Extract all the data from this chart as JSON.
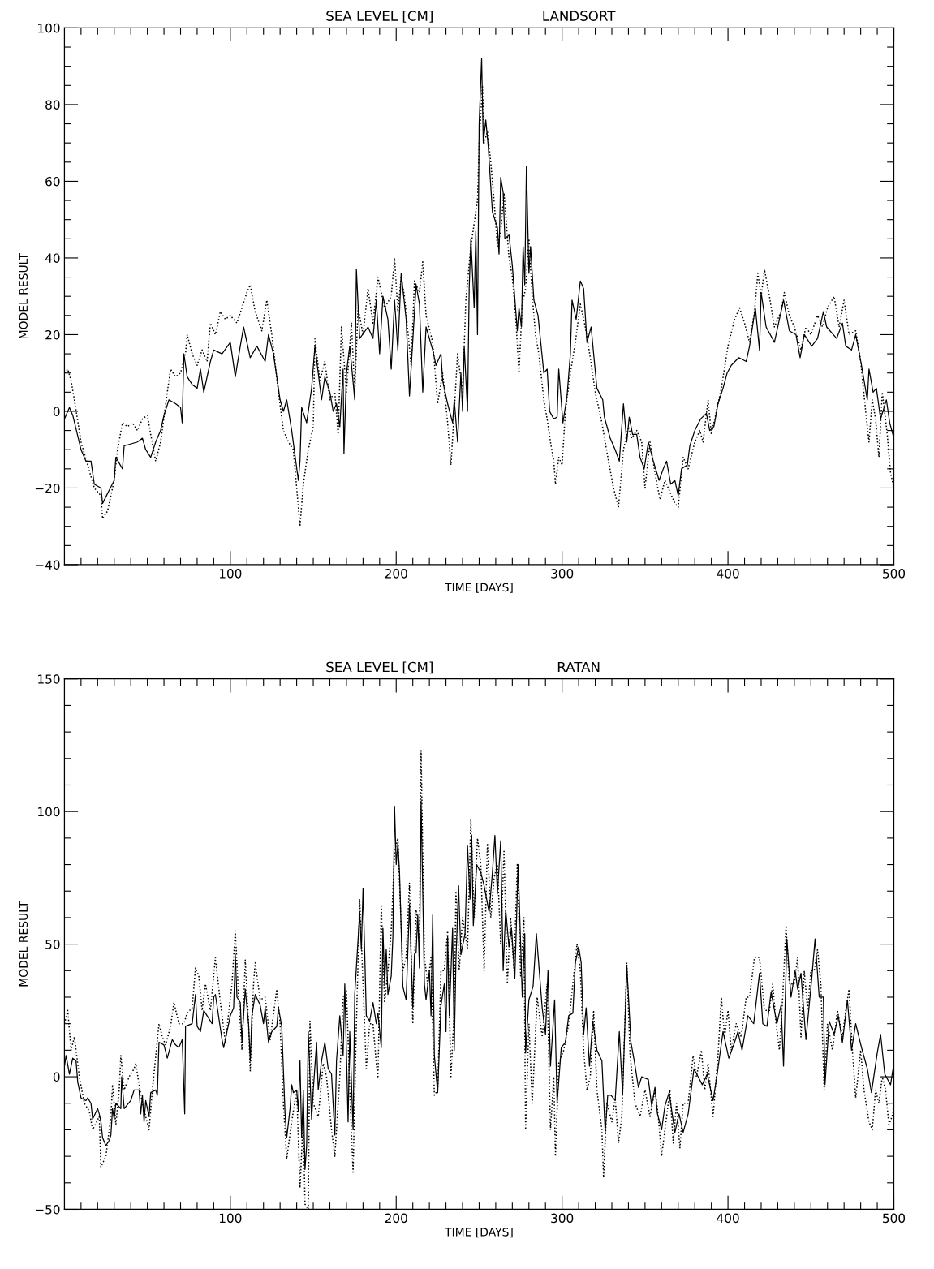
{
  "chart_data": [
    {
      "type": "line",
      "title": "SEA LEVEL [CM]",
      "subtitle": "LANDSORT",
      "xlabel": "TIME [DAYS]",
      "ylabel": "MODEL RESULT",
      "xlim": [
        0,
        500
      ],
      "ylim": [
        -40,
        100
      ],
      "xticks": [
        {
          "value": 10,
          "label": null
        },
        {
          "value": 20,
          "label": null
        },
        {
          "value": 30,
          "label": null
        },
        {
          "value": 40,
          "label": null
        },
        {
          "value": 50,
          "label": null
        },
        {
          "value": 60,
          "label": null
        },
        {
          "value": 70,
          "label": null
        },
        {
          "value": 80,
          "label": null
        },
        {
          "value": 90,
          "label": null
        },
        100,
        {
          "value": 110,
          "label": null
        },
        {
          "value": 120,
          "label": null
        },
        {
          "value": 130,
          "label": null
        },
        {
          "value": 140,
          "label": null
        },
        {
          "value": 150,
          "label": null
        },
        {
          "value": 160,
          "label": null
        },
        {
          "value": 170,
          "label": null
        },
        {
          "value": 180,
          "label": null
        },
        {
          "value": 190,
          "label": null
        },
        200,
        {
          "value": 210,
          "label": null
        },
        {
          "value": 220,
          "label": null
        },
        {
          "value": 230,
          "label": null
        },
        {
          "value": 240,
          "label": null
        },
        {
          "value": 250,
          "label": null
        },
        {
          "value": 260,
          "label": null
        },
        {
          "value": 270,
          "label": null
        },
        {
          "value": 280,
          "label": null
        },
        {
          "value": 290,
          "label": null
        },
        300,
        {
          "value": 310,
          "label": null
        },
        {
          "value": 320,
          "label": null
        },
        {
          "value": 330,
          "label": null
        },
        {
          "value": 340,
          "label": null
        },
        {
          "value": 350,
          "label": null
        },
        {
          "value": 360,
          "label": null
        },
        {
          "value": 370,
          "label": null
        },
        {
          "value": 380,
          "label": null
        },
        {
          "value": 390,
          "label": null
        },
        400,
        {
          "value": 410,
          "label": null
        },
        {
          "value": 420,
          "label": null
        },
        {
          "value": 430,
          "label": null
        },
        {
          "value": 440,
          "label": null
        },
        {
          "value": 450,
          "label": null
        },
        {
          "value": 460,
          "label": null
        },
        {
          "value": 470,
          "label": null
        },
        {
          "value": 480,
          "label": null
        },
        {
          "value": 490,
          "label": null
        },
        500
      ],
      "yticks": [
        {
          "value": -40,
          "label": "−40"
        },
        {
          "value": -35,
          "label": null
        },
        {
          "value": -30,
          "label": null
        },
        {
          "value": -25,
          "label": null
        },
        {
          "value": -20,
          "label": "−20"
        },
        {
          "value": -15,
          "label": null
        },
        {
          "value": -10,
          "label": null
        },
        {
          "value": -5,
          "label": null
        },
        0,
        {
          "value": 5,
          "label": null
        },
        {
          "value": 10,
          "label": null
        },
        {
          "value": 15,
          "label": null
        },
        20,
        {
          "value": 25,
          "label": null
        },
        {
          "value": 30,
          "label": null
        },
        {
          "value": 35,
          "label": null
        },
        40,
        {
          "value": 45,
          "label": null
        },
        {
          "value": 50,
          "label": null
        },
        {
          "value": 55,
          "label": null
        },
        60,
        {
          "value": 65,
          "label": null
        },
        {
          "value": 70,
          "label": null
        },
        {
          "value": 75,
          "label": null
        },
        80,
        {
          "value": 85,
          "label": null
        },
        {
          "value": 90,
          "label": null
        },
        {
          "value": 95,
          "label": null
        },
        100
      ],
      "grid": false,
      "series": [
        {
          "color": "#000000",
          "line_style": "solid",
          "x": [
            0,
            3,
            5,
            10,
            13,
            16,
            18,
            22,
            23,
            30,
            31,
            35,
            36,
            44,
            47,
            49,
            52,
            55,
            58,
            60,
            63,
            67,
            70,
            71,
            72,
            74,
            77,
            80,
            82,
            84,
            88,
            90,
            95,
            100,
            103,
            106,
            108,
            112,
            116,
            121,
            123,
            126,
            130,
            132,
            134,
            137,
            141,
            142,
            143,
            146,
            149,
            151,
            153,
            155,
            157,
            160,
            162,
            164,
            166,
            168,
            168.5,
            170,
            172,
            175,
            176,
            178,
            183,
            186,
            188,
            190,
            192,
            195,
            197,
            199,
            201,
            203,
            206,
            208,
            212,
            214,
            216,
            218,
            222,
            224,
            227,
            228,
            231,
            234,
            235,
            237,
            239,
            240,
            241,
            243,
            244,
            245,
            247,
            248,
            249,
            250,
            251.5,
            252.5,
            254,
            255.5,
            258,
            261,
            262,
            263,
            264.5,
            265.5,
            268,
            270,
            273,
            274,
            275.5,
            276.5,
            277.5,
            278.5,
            280,
            281,
            283,
            285.5,
            289,
            291,
            292.5,
            295,
            297,
            298,
            300.5,
            303,
            305,
            306,
            308.5,
            311,
            313,
            315,
            317.5,
            321,
            324.5,
            325.5,
            329,
            332,
            334.5,
            337,
            339,
            340.5,
            342.5,
            345,
            347,
            349.5,
            352,
            355,
            358.5,
            361,
            363,
            365.5,
            368,
            370,
            372,
            375.5,
            377,
            380,
            383.5,
            387,
            389,
            391.5,
            394,
            397,
            399.5,
            402,
            406.5,
            411,
            413,
            416.5,
            419,
            420,
            423,
            428,
            431,
            433.5,
            437,
            441,
            443.5,
            446,
            450.5,
            454,
            457.5,
            459.5,
            465.5,
            469,
            471,
            474.5,
            477,
            480.5,
            484,
            485,
            487.5,
            489.5,
            492,
            495.5,
            497.5,
            500
          ],
          "values": [
            -2,
            1,
            -1,
            -10,
            -13,
            -13,
            -19,
            -20,
            -24,
            -18,
            -12,
            -15,
            -9,
            -8,
            -7,
            -10,
            -12,
            -8,
            -5,
            -1,
            3,
            2,
            1,
            -3,
            15,
            9,
            7,
            6,
            11,
            5,
            13,
            16,
            15,
            18,
            9,
            17,
            22,
            14,
            17,
            13,
            20,
            15,
            3,
            0,
            3,
            -5,
            -18,
            -13,
            1,
            -3,
            6,
            17,
            10,
            3,
            9,
            5,
            0,
            2,
            -4,
            11,
            -11,
            10,
            17,
            3,
            37,
            19,
            22,
            19,
            29,
            15,
            30,
            24,
            11,
            29,
            16,
            36,
            24,
            4,
            33,
            28,
            5,
            22,
            16,
            12,
            15,
            8,
            2,
            -3,
            3,
            -8,
            10,
            0,
            17,
            0,
            32,
            45,
            27,
            47,
            20,
            75,
            92,
            70,
            76,
            69,
            52,
            48,
            41,
            61,
            57,
            45,
            46,
            38,
            21,
            27,
            22,
            43,
            33,
            64,
            36,
            43,
            29,
            25,
            10,
            11,
            0,
            -2,
            -1.5,
            11,
            -3,
            4,
            15,
            29,
            24,
            34,
            32,
            18,
            22,
            6,
            3,
            -1.5,
            -7,
            -10,
            -13,
            2,
            -8,
            -1.5,
            -6,
            -6,
            -12,
            -15,
            -8,
            -13,
            -18,
            -15,
            -13,
            -19,
            -18,
            -22,
            -15,
            -14,
            -9,
            -5,
            -2,
            -0.5,
            -5,
            -4,
            2,
            6,
            10,
            12,
            14,
            13,
            17,
            27,
            16,
            31,
            22,
            18,
            24,
            29,
            21,
            20,
            14,
            20,
            17,
            19,
            26,
            22,
            19,
            23,
            17,
            16,
            20,
            12,
            3,
            11,
            5,
            6,
            -2,
            3,
            -3,
            -7
          ]
        },
        {
          "color": "#000000",
          "line_style": "dotted",
          "x": [
            0,
            2,
            4,
            6,
            10,
            14,
            18,
            22,
            23,
            26,
            30,
            32,
            35,
            38,
            41,
            44,
            47,
            50,
            52,
            55,
            58,
            62,
            64,
            67,
            70,
            73,
            74,
            77,
            80,
            83,
            86,
            88,
            91,
            94,
            97,
            100,
            104,
            107,
            110,
            112,
            115,
            119,
            122,
            125,
            129,
            132,
            135,
            138,
            142,
            144,
            147,
            150,
            151,
            154,
            157,
            160,
            163,
            165,
            167,
            170,
            173,
            175,
            177,
            180,
            183,
            186,
            189,
            193,
            197,
            199,
            201,
            203,
            205,
            209,
            211,
            214,
            216,
            218,
            222,
            225,
            228,
            231,
            233,
            235,
            237,
            240,
            242,
            245,
            249,
            250,
            252,
            253,
            255,
            257,
            259,
            261,
            263,
            265,
            268,
            270,
            272,
            274,
            276,
            278,
            280,
            282,
            284,
            286,
            289,
            291,
            293,
            295,
            296,
            298,
            300,
            302,
            305,
            308,
            311,
            314,
            317,
            320,
            324,
            328,
            331,
            334,
            337,
            340,
            342,
            345,
            348,
            350,
            353,
            356,
            359,
            362,
            365,
            368,
            370,
            373,
            376,
            380,
            383,
            385,
            388,
            390,
            393,
            396,
            400,
            404,
            407,
            410,
            413,
            416,
            418,
            420,
            422,
            425,
            428,
            432,
            434,
            437,
            440,
            444,
            447,
            450,
            454,
            457,
            460,
            464,
            467,
            470,
            473,
            477,
            480,
            483,
            485,
            487,
            489,
            491,
            493,
            496,
            498,
            500
          ],
          "values": [
            10,
            11,
            8,
            3,
            -8,
            -14,
            -20,
            -22,
            -28,
            -26,
            -18,
            -10,
            -3,
            -4,
            -3,
            -5,
            -2,
            -1,
            -6,
            -13,
            -8,
            5,
            11,
            9,
            10,
            15,
            20,
            15,
            12,
            16,
            13,
            23,
            20,
            26,
            24,
            25,
            23,
            27,
            31,
            33,
            26,
            21,
            29,
            20,
            5,
            -5,
            -8,
            -10,
            -30,
            -19,
            -10,
            -4,
            19,
            8,
            13,
            3,
            5,
            -6,
            22,
            5,
            23,
            5,
            27,
            20,
            32,
            23,
            35,
            27,
            30,
            40,
            26,
            35,
            30,
            12,
            34,
            31,
            39,
            25,
            18,
            2,
            10,
            -3,
            -14,
            0,
            15,
            5,
            29,
            43,
            55,
            70,
            85,
            70,
            73,
            65,
            55,
            43,
            47,
            57,
            40,
            35,
            25,
            10,
            28,
            32,
            45,
            30,
            20,
            15,
            3,
            -2,
            -8,
            -13,
            -19,
            -12,
            -14,
            0,
            10,
            18,
            28,
            22,
            14,
            5,
            -3,
            -13,
            -20,
            -25,
            -10,
            -4,
            -7,
            -5,
            -8,
            -20,
            -8,
            -16,
            -23,
            -18,
            -21,
            -24,
            -25,
            -12,
            -15,
            -8,
            -5,
            -8,
            3,
            -6,
            0,
            6,
            17,
            24,
            27,
            23,
            18,
            26,
            36,
            30,
            37,
            30,
            22,
            26,
            31,
            25,
            22,
            16,
            22,
            20,
            25,
            22,
            27,
            30,
            22,
            29,
            20,
            21,
            13,
            0,
            -8,
            3,
            -2,
            -12,
            5,
            -6,
            -16,
            -20
          ]
        }
      ]
    },
    {
      "type": "line",
      "title": "SEA LEVEL [CM]",
      "subtitle": "RATAN",
      "xlabel": "TIME [DAYS]",
      "ylabel": "MODEL RESULT",
      "xlim": [
        0,
        500
      ],
      "ylim": [
        -50,
        150
      ],
      "xticks": [
        {
          "value": 10,
          "label": null
        },
        {
          "value": 20,
          "label": null
        },
        {
          "value": 30,
          "label": null
        },
        {
          "value": 40,
          "label": null
        },
        {
          "value": 50,
          "label": null
        },
        {
          "value": 60,
          "label": null
        },
        {
          "value": 70,
          "label": null
        },
        {
          "value": 80,
          "label": null
        },
        {
          "value": 90,
          "label": null
        },
        100,
        {
          "value": 110,
          "label": null
        },
        {
          "value": 120,
          "label": null
        },
        {
          "value": 130,
          "label": null
        },
        {
          "value": 140,
          "label": null
        },
        {
          "value": 150,
          "label": null
        },
        {
          "value": 160,
          "label": null
        },
        {
          "value": 170,
          "label": null
        },
        {
          "value": 180,
          "label": null
        },
        {
          "value": 190,
          "label": null
        },
        200,
        {
          "value": 210,
          "label": null
        },
        {
          "value": 220,
          "label": null
        },
        {
          "value": 230,
          "label": null
        },
        {
          "value": 240,
          "label": null
        },
        {
          "value": 250,
          "label": null
        },
        {
          "value": 260,
          "label": null
        },
        {
          "value": 270,
          "label": null
        },
        {
          "value": 280,
          "label": null
        },
        {
          "value": 290,
          "label": null
        },
        300,
        {
          "value": 310,
          "label": null
        },
        {
          "value": 320,
          "label": null
        },
        {
          "value": 330,
          "label": null
        },
        {
          "value": 340,
          "label": null
        },
        {
          "value": 350,
          "label": null
        },
        {
          "value": 360,
          "label": null
        },
        {
          "value": 370,
          "label": null
        },
        {
          "value": 380,
          "label": null
        },
        {
          "value": 390,
          "label": null
        },
        400,
        {
          "value": 410,
          "label": null
        },
        {
          "value": 420,
          "label": null
        },
        {
          "value": 430,
          "label": null
        },
        {
          "value": 440,
          "label": null
        },
        {
          "value": 450,
          "label": null
        },
        {
          "value": 460,
          "label": null
        },
        {
          "value": 470,
          "label": null
        },
        {
          "value": 480,
          "label": null
        },
        {
          "value": 490,
          "label": null
        },
        500
      ],
      "yticks": [
        {
          "value": -50,
          "label": "−50"
        },
        {
          "value": -40,
          "label": null
        },
        {
          "value": -30,
          "label": null
        },
        {
          "value": -20,
          "label": null
        },
        {
          "value": -10,
          "label": null
        },
        0,
        {
          "value": 10,
          "label": null
        },
        {
          "value": 20,
          "label": null
        },
        {
          "value": 30,
          "label": null
        },
        {
          "value": 40,
          "label": null
        },
        50,
        {
          "value": 60,
          "label": null
        },
        {
          "value": 70,
          "label": null
        },
        {
          "value": 80,
          "label": null
        },
        {
          "value": 90,
          "label": null
        },
        100,
        {
          "value": 110,
          "label": null
        },
        {
          "value": 120,
          "label": null
        },
        {
          "value": 130,
          "label": null
        },
        {
          "value": 140,
          "label": null
        },
        150
      ],
      "grid": false,
      "series": [
        {
          "color": "#000000",
          "line_style": "solid",
          "x": [
            0,
            1,
            3,
            5,
            7,
            8,
            10,
            13,
            14,
            16,
            17,
            20,
            21,
            22,
            23,
            25,
            27,
            28,
            29,
            30,
            31,
            34,
            34.5,
            36,
            40,
            42,
            45,
            46,
            47,
            48,
            49,
            51,
            52,
            55,
            56,
            57,
            60,
            62,
            65,
            67,
            69,
            71,
            72.5,
            73,
            77,
            79,
            80,
            82,
            84,
            86,
            89,
            90,
            91,
            95,
            96,
            100,
            102,
            103,
            104,
            106,
            107,
            109,
            111,
            112,
            113,
            115,
            118,
            120,
            121,
            123,
            125,
            128,
            129,
            131,
            133,
            134,
            136,
            137,
            138,
            140,
            141,
            142,
            143,
            144,
            145,
            146,
            147,
            149,
            150,
            152,
            153,
            155,
            157,
            159,
            161,
            163,
            164,
            166,
            168,
            169,
            171,
            172,
            174,
            175,
            178,
            179,
            180,
            182,
            184,
            186,
            188,
            189,
            191,
            192,
            193,
            194,
            195,
            197,
            198,
            199,
            200,
            201,
            202,
            204,
            206,
            208,
            210,
            211,
            212,
            213,
            214,
            215,
            217,
            218,
            220,
            221,
            222,
            223,
            225,
            227,
            229,
            230,
            231,
            232,
            234,
            235,
            236,
            237.6,
            239,
            241.5,
            243,
            244.5,
            245.5,
            246.5,
            248.5,
            251,
            253,
            256,
            258,
            259.5,
            261,
            263,
            264.5,
            266,
            268,
            269.5,
            271.5,
            273.5,
            276,
            277.5,
            278,
            280,
            282.5,
            284.5,
            288,
            290,
            291.5,
            293,
            295.5,
            297,
            299.5,
            302,
            304,
            306.5,
            308,
            310,
            311.5,
            313,
            314.5,
            316.5,
            318.5,
            321,
            324,
            326,
            327.5,
            329.5,
            332,
            334.5,
            336.5,
            339,
            341.5,
            343.5,
            346,
            348,
            352,
            354,
            356,
            357.5,
            360,
            362,
            364.5,
            368,
            370.5,
            373,
            376,
            379.5,
            382,
            384.5,
            387.5,
            391,
            393.5,
            397,
            400.5,
            404,
            406,
            408.5,
            412,
            415.5,
            419,
            421,
            423.5,
            426,
            429.5,
            432,
            433.5,
            435.5,
            438,
            440.5,
            442,
            444,
            447,
            450.5,
            452.5,
            455,
            457.5,
            458.5,
            461,
            464,
            466.5,
            469,
            472,
            474.5,
            477,
            480.5,
            484,
            486.5,
            490,
            492,
            494.5,
            498,
            500
          ],
          "values": [
            4,
            8,
            1,
            7,
            6,
            -2,
            -8,
            -9,
            -8,
            -10,
            -16,
            -12,
            -14,
            -17,
            -23,
            -26,
            -24,
            -22,
            -12,
            -16,
            -10,
            -12,
            0,
            -12,
            -9,
            -5,
            -5,
            -14,
            -7,
            -17,
            -9,
            -15,
            -6,
            -5,
            -7,
            13,
            12,
            7,
            14,
            12,
            11,
            14,
            -14,
            19,
            20,
            31,
            19,
            17,
            25,
            23,
            20,
            30,
            31,
            14,
            11,
            23,
            26,
            46,
            30,
            28,
            13,
            33,
            20,
            6,
            23,
            31,
            27,
            20,
            26,
            13,
            17,
            19,
            26,
            19,
            -14,
            -23,
            -12,
            -3,
            -6,
            -5,
            -13,
            6,
            -23,
            -5,
            -35,
            -26,
            17,
            -16,
            -5,
            13,
            -5,
            6,
            13,
            3,
            1,
            -22,
            6,
            23,
            8,
            35,
            -17,
            17,
            -20,
            31,
            62,
            48,
            71,
            23,
            21,
            28,
            20,
            24,
            11,
            56,
            35,
            48,
            31,
            38,
            53,
            102,
            80,
            88,
            77,
            34,
            29,
            65,
            26,
            46,
            47,
            61,
            41,
            104,
            35,
            29,
            40,
            23,
            61,
            8,
            -6,
            27,
            35,
            17,
            53,
            23,
            56,
            10,
            44,
            72,
            46,
            54,
            87,
            67,
            91,
            57,
            80,
            77,
            72,
            62,
            77,
            91,
            69,
            89,
            40,
            63,
            49,
            56,
            37,
            80,
            30,
            54,
            9,
            29,
            34,
            54,
            26,
            16,
            40,
            4,
            29,
            -10,
            11,
            13,
            23,
            24,
            43,
            49,
            43,
            16,
            26,
            4,
            21,
            10,
            6,
            -21,
            -7,
            -7,
            -9,
            17,
            -7,
            42,
            13,
            6,
            -4,
            0,
            -1,
            -11,
            -4,
            -14,
            -20,
            -11,
            -6,
            -21,
            -14,
            -21,
            -14,
            3,
            0,
            -3,
            1,
            -9,
            1,
            17,
            7,
            13,
            17,
            10,
            23,
            20,
            39,
            20,
            19,
            32,
            20,
            27,
            4,
            52,
            30,
            40,
            33,
            39,
            14,
            37,
            52,
            30,
            30,
            -3,
            21,
            16,
            23,
            13,
            29,
            10,
            20,
            11,
            3,
            -6,
            9,
            16,
            1,
            -3,
            5
          ]
        },
        {
          "color": "#000000",
          "line_style": "dotted",
          "x": [
            0,
            2,
            4,
            6,
            7,
            9,
            12,
            15,
            17,
            21,
            22,
            25,
            28,
            29,
            31,
            33,
            34,
            36,
            39,
            42,
            43,
            45,
            47,
            51,
            53,
            57,
            59,
            61,
            64,
            66,
            69,
            72,
            74,
            77,
            79,
            81,
            83,
            85,
            88,
            91,
            94,
            97,
            101,
            103,
            105,
            107,
            109,
            111,
            112,
            114,
            115,
            118,
            121,
            124,
            128,
            130,
            132,
            134,
            137,
            140,
            142,
            144,
            145,
            147,
            148,
            150,
            153,
            156,
            158,
            161,
            163,
            166,
            168,
            170,
            172,
            174,
            176,
            178,
            180,
            182,
            184,
            186,
            188,
            189,
            191,
            193,
            195,
            197,
            199,
            201,
            204,
            206,
            208,
            210,
            212,
            214,
            215,
            217,
            219,
            221,
            223,
            225,
            227,
            229,
            231,
            233,
            235,
            236,
            238,
            240,
            243,
            245,
            247,
            249,
            251,
            253,
            255,
            257,
            259,
            261,
            263,
            265,
            267,
            269,
            271,
            273,
            275,
            277,
            278,
            280,
            282,
            285,
            288,
            291,
            293,
            295,
            296,
            298,
            301,
            304,
            307,
            309,
            311,
            313,
            315,
            317,
            319,
            321,
            324,
            325,
            327,
            330,
            332,
            334,
            336,
            339,
            341,
            344,
            347,
            350,
            353,
            356,
            358,
            360,
            362,
            365,
            367,
            369,
            371,
            373,
            376,
            379,
            381,
            384,
            386,
            388,
            391,
            394,
            396,
            398,
            400,
            402,
            405,
            408,
            411,
            413,
            416,
            419,
            422,
            425,
            427,
            429,
            431,
            433,
            435,
            437,
            440,
            442,
            444,
            446,
            448,
            450,
            452,
            454,
            456,
            458,
            460,
            463,
            466,
            469,
            471,
            473,
            475,
            477,
            480,
            482,
            485,
            487,
            489,
            491,
            493,
            495,
            497,
            499,
            500
          ],
          "values": [
            20,
            25,
            10,
            15,
            10,
            0,
            -10,
            -13,
            -20,
            -15,
            -34,
            -30,
            -15,
            -3,
            -18,
            -5,
            8,
            -5,
            0,
            3,
            5,
            -3,
            -10,
            -20,
            -5,
            20,
            15,
            12,
            19,
            28,
            20,
            20,
            24,
            26,
            41,
            38,
            25,
            35,
            25,
            45,
            28,
            13,
            35,
            55,
            30,
            10,
            44,
            20,
            2,
            35,
            43,
            29,
            30,
            14,
            33,
            20,
            -10,
            -31,
            -17,
            -5,
            -42,
            -15,
            -48,
            -50,
            21,
            -10,
            -15,
            5,
            0,
            -20,
            -30,
            0,
            30,
            33,
            -5,
            -36,
            20,
            67,
            35,
            3,
            20,
            20,
            5,
            0,
            65,
            28,
            40,
            55,
            85,
            90,
            40,
            45,
            73,
            20,
            63,
            50,
            123,
            45,
            35,
            45,
            -7,
            -5,
            40,
            40,
            55,
            0,
            25,
            70,
            40,
            60,
            48,
            97,
            60,
            90,
            80,
            40,
            88,
            60,
            75,
            80,
            50,
            85,
            35,
            60,
            40,
            80,
            38,
            60,
            -20,
            20,
            -10,
            30,
            15,
            35,
            -20,
            0,
            -30,
            5,
            10,
            20,
            38,
            50,
            40,
            10,
            -5,
            0,
            25,
            -5,
            -20,
            -38,
            -10,
            -17,
            -8,
            -25,
            -15,
            43,
            8,
            -10,
            -15,
            -5,
            -15,
            -5,
            -15,
            -30,
            -20,
            -5,
            -25,
            -10,
            -27,
            -10,
            -10,
            8,
            0,
            10,
            -5,
            5,
            -15,
            8,
            30,
            15,
            25,
            10,
            20,
            15,
            30,
            30,
            45,
            45,
            25,
            25,
            35,
            20,
            10,
            30,
            57,
            35,
            35,
            45,
            15,
            40,
            25,
            40,
            40,
            48,
            35,
            -5,
            20,
            10,
            25,
            15,
            25,
            33,
            10,
            -8,
            10,
            -5,
            -17,
            -20,
            -5,
            -10,
            0,
            -5,
            -18,
            -15,
            -10
          ]
        }
      ]
    }
  ]
}
